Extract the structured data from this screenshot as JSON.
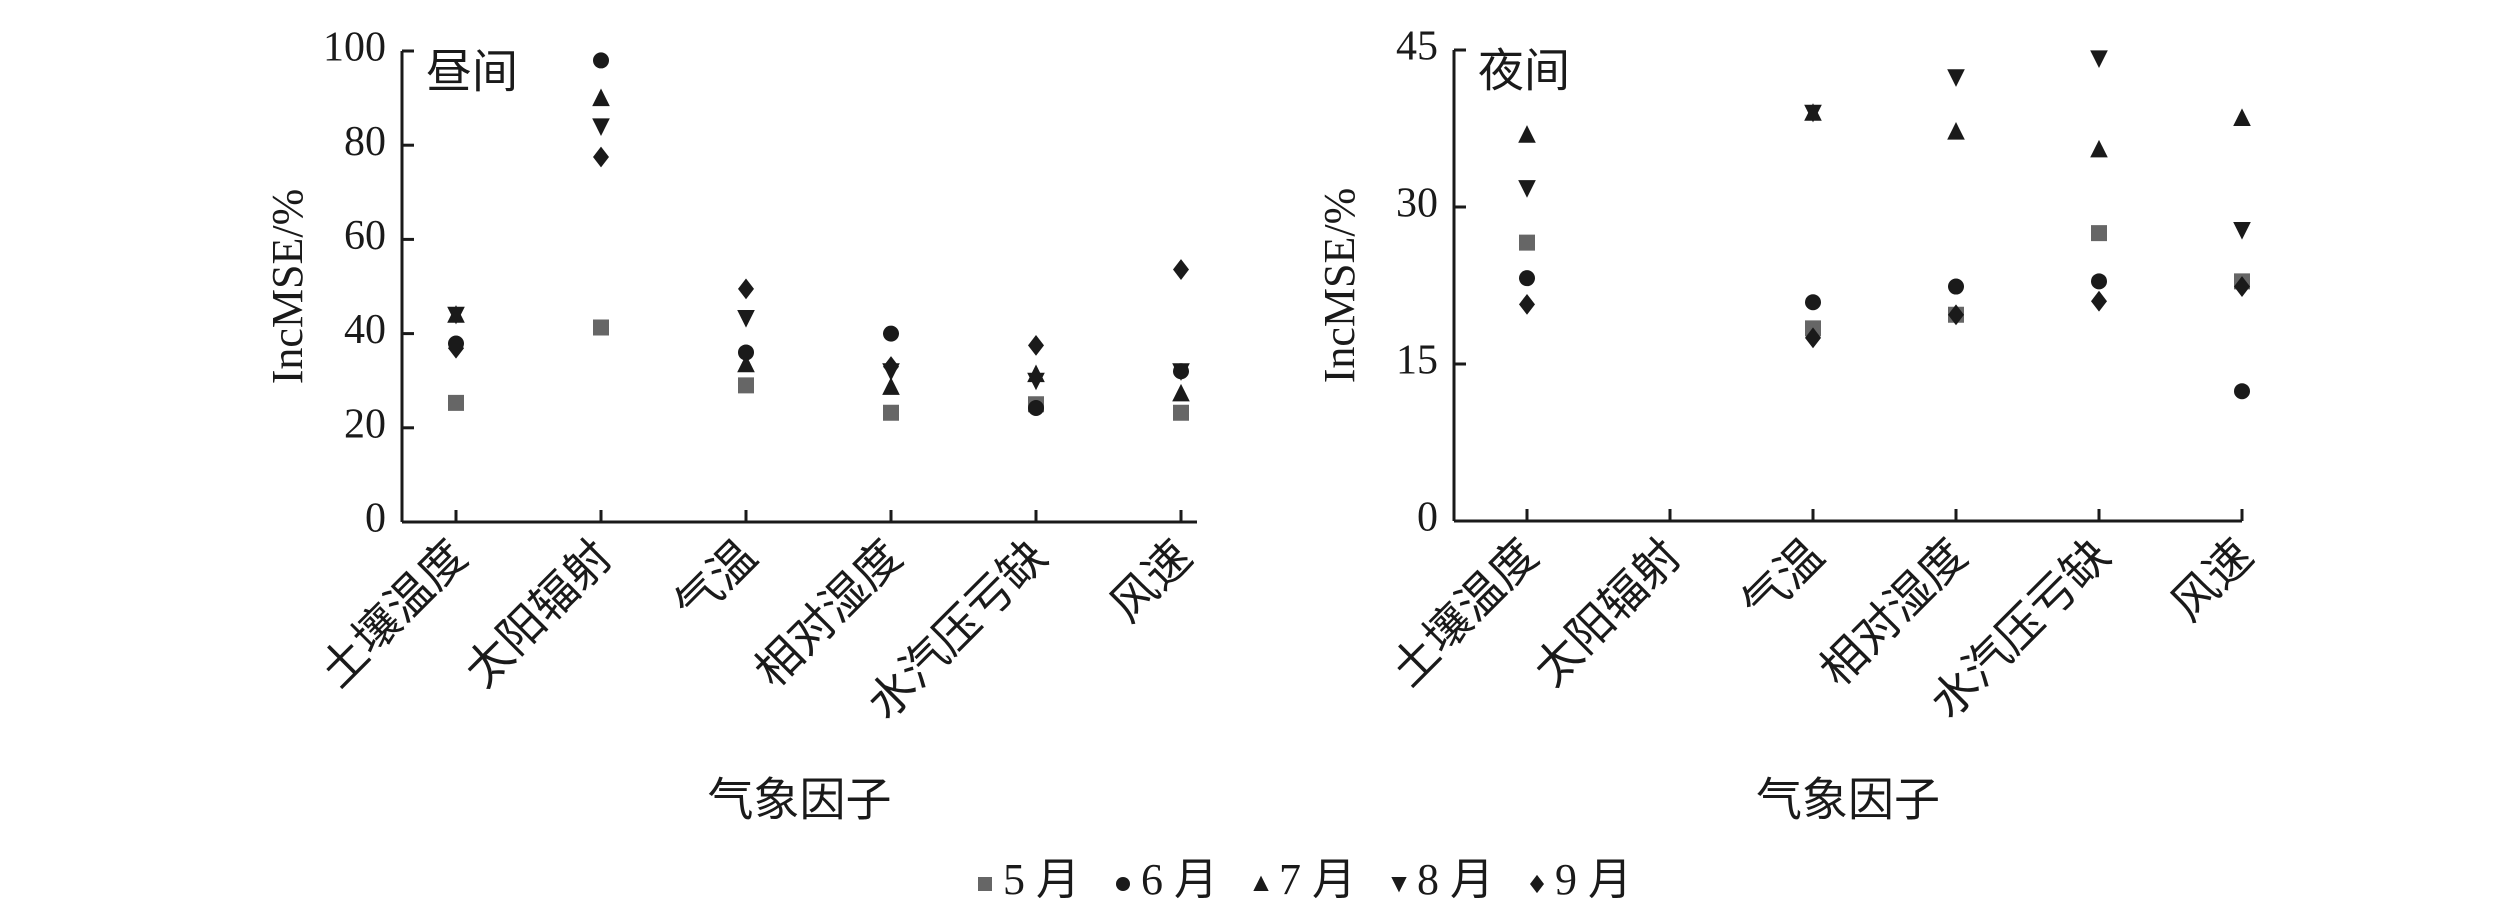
{
  "chart_data": [
    {
      "type": "scatter",
      "panel_label": "昼间",
      "ylabel": "IncMSE/%",
      "xlabel": "气象因子",
      "categories": [
        "土壤温度",
        "太阳辐射",
        "气温",
        "相对湿度",
        "水汽压亏缺",
        "风速"
      ],
      "ylim": [
        0,
        100
      ],
      "yticks": [
        0,
        20,
        40,
        60,
        80,
        100
      ],
      "series": [
        {
          "name": "5 月",
          "color": "#666666",
          "marker": "square",
          "values": [
            25.3,
            41.3,
            29,
            23.2,
            25,
            23.2
          ]
        },
        {
          "name": "6 月",
          "color": "#1a1a1a",
          "marker": "circle",
          "values": [
            37.9,
            98,
            36,
            40,
            24.2,
            32
          ]
        },
        {
          "name": "7 月",
          "color": "#1a1a1a",
          "marker": "triangle-up",
          "values": [
            44,
            90,
            33.5,
            28.7,
            31.4,
            27.3
          ]
        },
        {
          "name": "8 月",
          "color": "#1a1a1a",
          "marker": "triangle-down",
          "values": [
            44,
            84,
            43.3,
            32,
            30,
            32
          ]
        },
        {
          "name": "9 月",
          "color": "#1a1a1a",
          "marker": "diamond",
          "values": [
            36.9,
            77.5,
            49.5,
            33,
            37.5,
            53.6
          ]
        }
      ]
    },
    {
      "type": "scatter",
      "panel_label": "夜间",
      "ylabel": "IncMSE/%",
      "xlabel": "气象因子",
      "categories": [
        "土壤温度",
        "太阳辐射",
        "气温",
        "相对湿度",
        "水汽压亏缺",
        "风速"
      ],
      "ylim": [
        0,
        45
      ],
      "yticks": [
        0,
        15,
        30,
        45
      ],
      "series": [
        {
          "name": "5 月",
          "color": "#666666",
          "marker": "square",
          "values": [
            26.6,
            null,
            18.4,
            19.7,
            27.5,
            22.9
          ]
        },
        {
          "name": "6 月",
          "color": "#1a1a1a",
          "marker": "circle",
          "values": [
            23.2,
            null,
            20.9,
            22.4,
            22.9,
            12.4
          ]
        },
        {
          "name": "7 月",
          "color": "#1a1a1a",
          "marker": "triangle-up",
          "values": [
            36.9,
            null,
            39,
            37.2,
            35.5,
            38.5
          ]
        },
        {
          "name": "8 月",
          "color": "#1a1a1a",
          "marker": "triangle-down",
          "values": [
            31.8,
            null,
            39,
            42.4,
            44.2,
            27.8
          ]
        },
        {
          "name": "9 月",
          "color": "#1a1a1a",
          "marker": "diamond",
          "values": [
            20.7,
            null,
            17.5,
            19.7,
            21,
            22.4
          ]
        }
      ]
    }
  ]
}
